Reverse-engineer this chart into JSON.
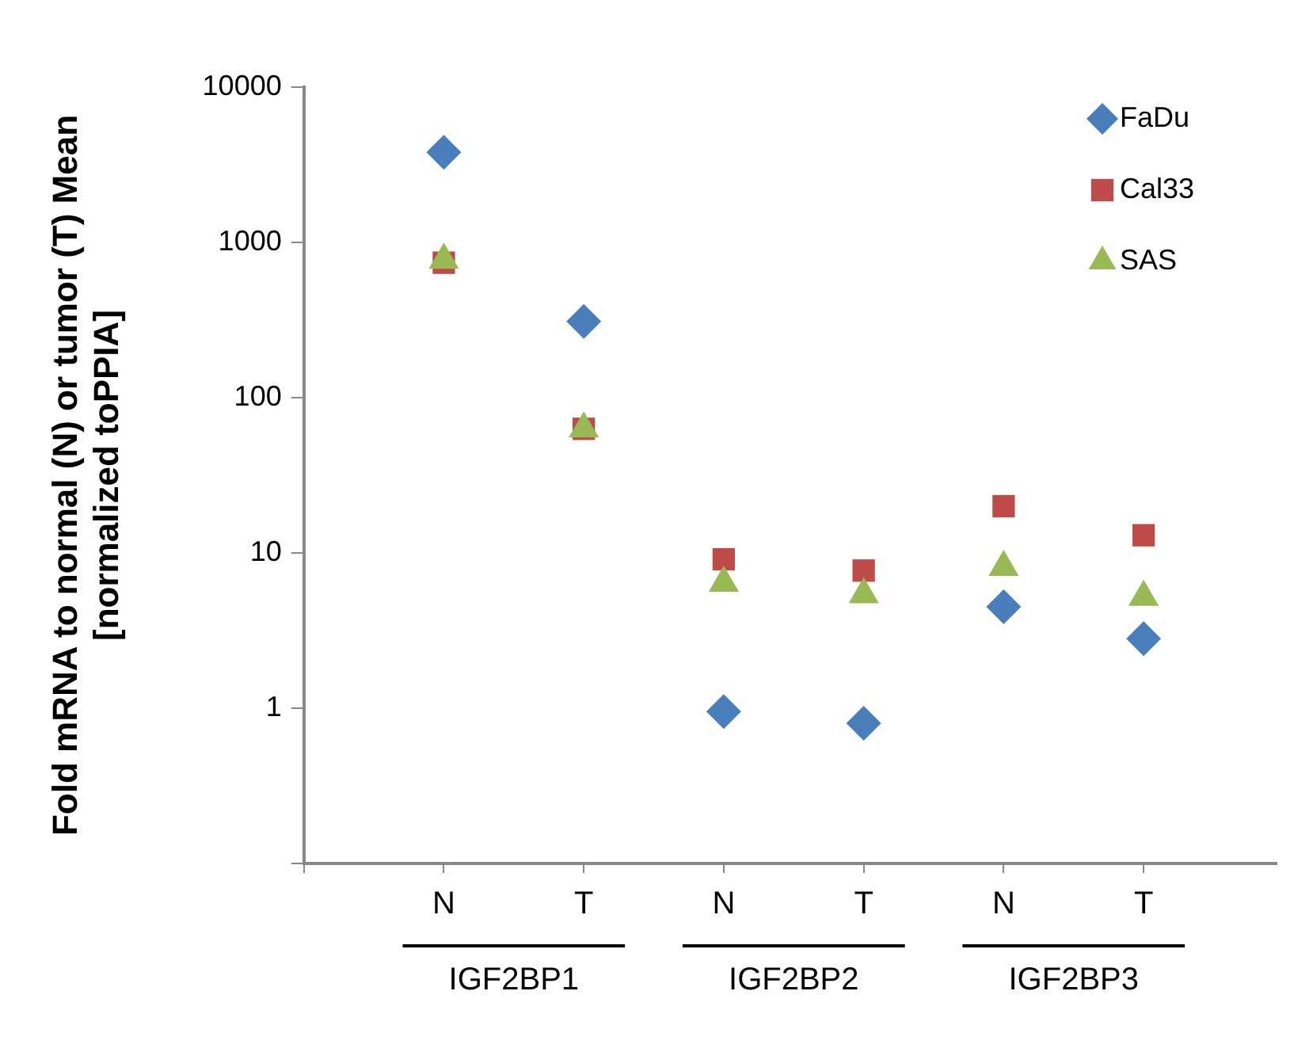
{
  "chart_data": {
    "type": "scatter",
    "ylabel": "Fold mRNA to normal (N) or tumor (T) Mean\n[normalized toPPIA]",
    "categories": [
      "N",
      "T",
      "N",
      "T",
      "N",
      "T"
    ],
    "annotations": [
      "IGF2BP1",
      "IGF2BP2",
      "IGF2BP3"
    ],
    "log": "y",
    "ylim": [
      0.1,
      10000
    ],
    "yticks": [
      {
        "value": 0.1,
        "label": null
      },
      1,
      10,
      100,
      1000,
      10000
    ],
    "grid": false,
    "legend": "top right",
    "series": [
      {
        "name": "FaDu",
        "color": "#4a7ebb",
        "marker": "diamond",
        "values": [
          3800,
          310,
          0.95,
          0.8,
          4.5,
          2.8
        ]
      },
      {
        "name": "Cal33",
        "color": "#be4b48",
        "marker": "square",
        "values": [
          740,
          63,
          9.1,
          7.7,
          20,
          13
        ]
      },
      {
        "name": "SAS",
        "color": "#98b954",
        "marker": "triangle",
        "values": [
          770,
          63,
          6.4,
          5.4,
          8.1,
          5.2
        ]
      }
    ]
  }
}
